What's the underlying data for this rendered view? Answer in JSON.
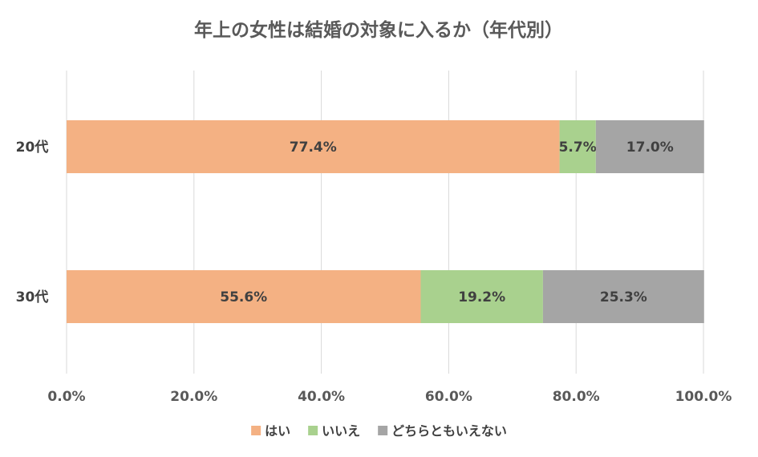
{
  "chart_data": {
    "type": "bar",
    "orientation": "horizontal",
    "stacked": true,
    "title": "年上の女性は結婚の対象に入るか（年代別）",
    "categories": [
      "20代",
      "30代"
    ],
    "series": [
      {
        "name": "はい",
        "color": "#F4B183",
        "values": [
          77.4,
          55.6
        ],
        "labels": [
          "77.4%",
          "55.6%"
        ]
      },
      {
        "name": "いいえ",
        "color": "#A9D18E",
        "values": [
          5.7,
          19.2
        ],
        "labels": [
          "5.7%",
          "19.2%"
        ]
      },
      {
        "name": "どちらともいえない",
        "color": "#A5A5A5",
        "values": [
          17.0,
          25.3
        ],
        "labels": [
          "17.0%",
          "25.3%"
        ]
      }
    ],
    "xlim": [
      0,
      100
    ],
    "xticks": [
      "0.0%",
      "20.0%",
      "40.0%",
      "60.0%",
      "80.0%",
      "100.0%"
    ],
    "grid": true,
    "legend_position": "bottom"
  }
}
